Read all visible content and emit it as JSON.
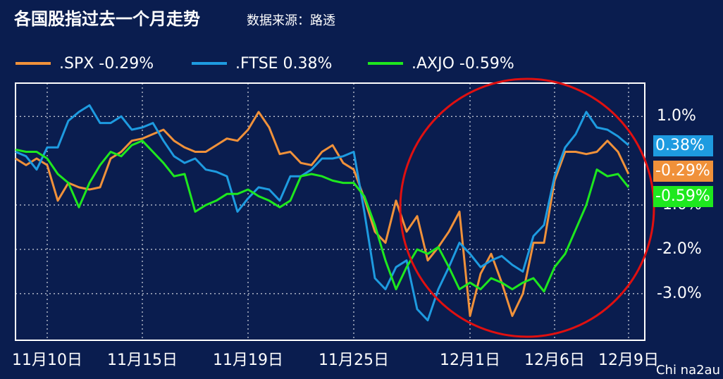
{
  "chart_data": {
    "type": "line",
    "title": "各国股指过去一个月走势",
    "subtitle": "数据来源：路透",
    "watermark": "Chi na2au",
    "categories": [
      null,
      null,
      null,
      "11月10日",
      null,
      null,
      null,
      null,
      null,
      null,
      null,
      null,
      "11月15日",
      null,
      null,
      null,
      null,
      null,
      null,
      null,
      null,
      null,
      "11月19日",
      null,
      null,
      null,
      null,
      null,
      null,
      null,
      null,
      null,
      "11月25日",
      null,
      null,
      null,
      null,
      null,
      null,
      null,
      null,
      null,
      null,
      "12月1日",
      null,
      null,
      null,
      null,
      null,
      null,
      null,
      "12月6日",
      null,
      null,
      null,
      null,
      null,
      null,
      "12月9日"
    ],
    "series": [
      {
        "name": ".SPX -0.29%",
        "end_label": "-0.29%",
        "color": "#f0913a",
        "values": [
          0.05,
          -0.1,
          0.05,
          -0.1,
          -0.9,
          -0.5,
          -0.6,
          -0.65,
          -0.6,
          0.05,
          0.2,
          0.45,
          0.5,
          0.6,
          0.7,
          0.45,
          0.3,
          0.2,
          0.2,
          0.35,
          0.5,
          0.45,
          0.7,
          1.1,
          0.75,
          0.15,
          0.2,
          -0.05,
          -0.1,
          0.2,
          0.35,
          -0.05,
          -0.2,
          -0.85,
          -1.6,
          -1.85,
          -0.9,
          -1.6,
          -1.25,
          -2.25,
          -1.95,
          -1.6,
          -1.15,
          -3.5,
          -2.55,
          -2.1,
          -2.75,
          -3.5,
          -3.0,
          -1.85,
          -1.85,
          -0.45,
          0.2,
          0.2,
          0.15,
          0.2,
          0.45,
          0.2,
          -0.3
        ]
      },
      {
        "name": ".FTSE 0.38%",
        "end_label": "0.38%",
        "color": "#1e9be0",
        "values": [
          0.2,
          0.1,
          -0.2,
          0.3,
          0.3,
          0.9,
          1.1,
          1.25,
          0.85,
          0.85,
          1.0,
          0.7,
          0.75,
          0.85,
          0.45,
          0.1,
          -0.05,
          0.05,
          -0.2,
          -0.25,
          -0.35,
          -1.15,
          -0.85,
          -0.6,
          -0.65,
          -0.9,
          -0.35,
          -0.35,
          -0.2,
          0.05,
          0.05,
          0.1,
          0.2,
          -1.15,
          -2.65,
          -2.9,
          -2.4,
          -2.25,
          -3.35,
          -3.6,
          -2.9,
          -2.4,
          -1.85,
          -2.1,
          -2.4,
          -2.25,
          -2.15,
          -2.35,
          -2.5,
          -1.7,
          -1.45,
          -0.35,
          0.3,
          0.6,
          1.1,
          0.75,
          0.7,
          0.55,
          0.35
        ]
      },
      {
        "name": ".AXJO -0.59%",
        "end_label": "-0.59%",
        "color": "#1ee81e",
        "values": [
          0.25,
          0.2,
          0.2,
          0.05,
          -0.3,
          -0.5,
          -1.05,
          -0.5,
          -0.1,
          0.2,
          0.1,
          0.35,
          0.45,
          0.2,
          -0.05,
          -0.35,
          -0.3,
          -1.15,
          -1.0,
          -0.9,
          -0.75,
          -0.75,
          -0.65,
          -0.8,
          -0.9,
          -1.05,
          -0.9,
          -0.35,
          -0.3,
          -0.35,
          -0.45,
          -0.5,
          -0.5,
          -0.8,
          -1.45,
          -2.25,
          -2.9,
          -2.4,
          -2.0,
          -2.1,
          -1.95,
          -2.4,
          -2.9,
          -2.75,
          -2.9,
          -2.65,
          -2.75,
          -2.9,
          -2.75,
          -2.65,
          -2.95,
          -2.4,
          -2.1,
          -1.55,
          -1.0,
          -0.2,
          -0.35,
          -0.3,
          -0.6
        ]
      }
    ],
    "ylim": [
      -4.05,
      1.75
    ],
    "yticks": [
      {
        "value": 1,
        "label": "1.0%"
      },
      {
        "value": -1,
        "label": "-1.0%"
      },
      {
        "value": -2,
        "label": "-2.0%"
      },
      {
        "value": -3,
        "label": "-3.0%"
      }
    ],
    "grid": true
  }
}
